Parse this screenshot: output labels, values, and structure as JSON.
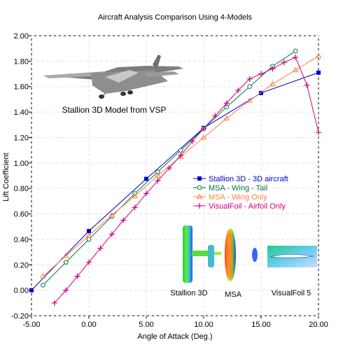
{
  "chart_data": {
    "type": "line",
    "title": "Aircraft Analysis Comparison Using 4-Models",
    "xlabel": "Angle of Attack (Deg.)",
    "ylabel": "Lift Coefficient",
    "xlim": [
      -5,
      20
    ],
    "ylim": [
      -0.2,
      2.0
    ],
    "x_ticks": [
      "-5.00",
      "0.00",
      "5.00",
      "10.00",
      "15.00",
      "20.00"
    ],
    "y_ticks": [
      "-0.20",
      "0.00",
      "0.20",
      "0.40",
      "0.60",
      "0.80",
      "1.00",
      "1.20",
      "1.40",
      "1.60",
      "1.80",
      "2.00"
    ],
    "grid": true,
    "legend_position": "right-middle",
    "series": [
      {
        "name": "Stallion 3D - 3D aircraft",
        "color": "#0000cc",
        "marker": "square",
        "x": [
          -5,
          0,
          5,
          10,
          15,
          20
        ],
        "y": [
          0.0,
          0.465,
          0.875,
          1.275,
          1.55,
          1.71
        ]
      },
      {
        "name": "MSA - Wing - Tail",
        "color": "#007744",
        "marker": "circle",
        "x": [
          -4,
          -2,
          0,
          2,
          4,
          6,
          8,
          10,
          12,
          14,
          16,
          18
        ],
        "y": [
          0.04,
          0.22,
          0.4,
          0.58,
          0.76,
          0.93,
          1.1,
          1.27,
          1.44,
          1.6,
          1.76,
          1.88
        ]
      },
      {
        "name": "MSA - Wing Only",
        "color": "#ff8040",
        "marker": "triangle",
        "x": [
          -4,
          -2,
          0,
          2,
          4,
          6,
          8,
          10,
          12,
          14,
          16,
          18,
          20
        ],
        "y": [
          0.11,
          0.27,
          0.43,
          0.59,
          0.74,
          0.9,
          1.05,
          1.2,
          1.35,
          1.49,
          1.62,
          1.73,
          1.84
        ]
      },
      {
        "name": "VisualFoil - Airfoil Only",
        "color": "#cc0080",
        "marker": "plus",
        "x": [
          -3,
          -2,
          -1,
          0,
          1,
          2,
          3,
          4,
          5,
          6,
          7,
          8,
          9,
          10,
          11,
          12,
          13,
          14,
          15,
          16,
          17,
          18,
          19,
          20
        ],
        "y": [
          -0.1,
          0.0,
          0.11,
          0.22,
          0.33,
          0.44,
          0.55,
          0.65,
          0.76,
          0.86,
          0.96,
          1.06,
          1.17,
          1.27,
          1.37,
          1.47,
          1.57,
          1.66,
          1.7,
          1.74,
          1.79,
          1.83,
          1.61,
          1.24
        ]
      }
    ],
    "annotations": {
      "model_caption": "Stallion 3D Model from VSP",
      "image_labels": [
        "Stallion 3D",
        "MSA",
        "VisualFoil 5"
      ]
    }
  }
}
